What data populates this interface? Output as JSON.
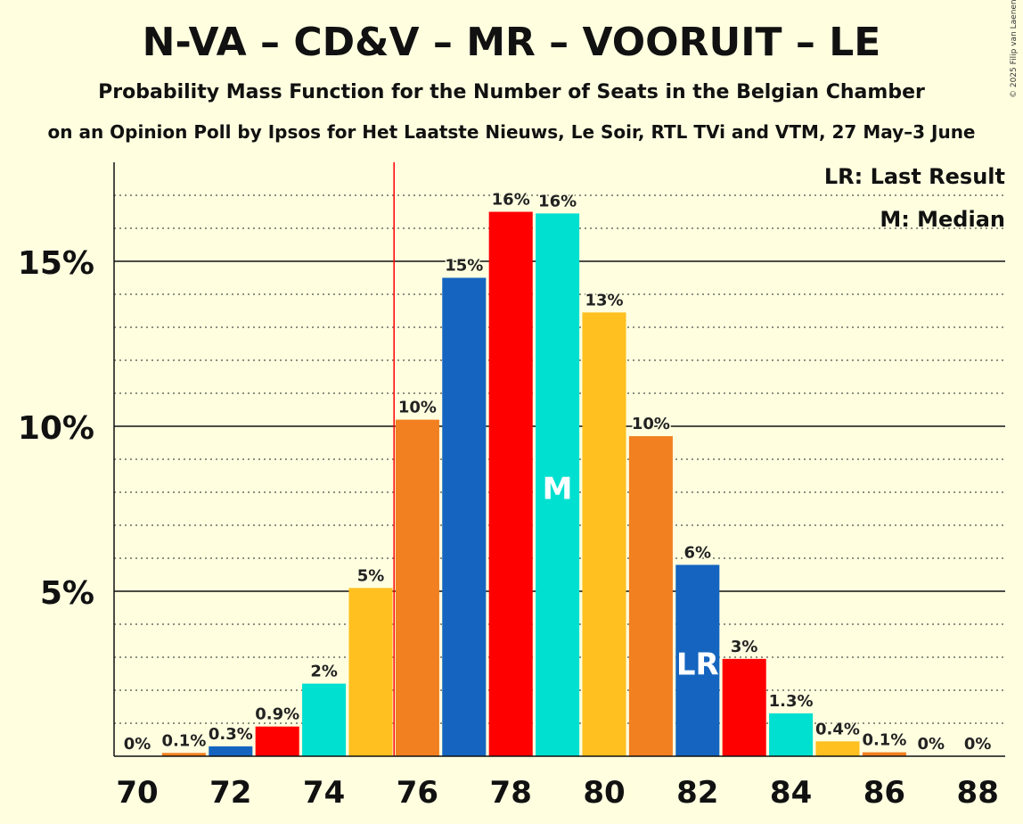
{
  "chart_data": {
    "type": "bar",
    "title": "N-VA – CD&V – MR – VOORUIT – LE",
    "subtitle": "Probability Mass Function for the Number of Seats in the Belgian Chamber",
    "source_line": "on an Opinion Poll by Ipsos for Het Laatste Nieuws, Le Soir, RTL TVi and VTM, 27 May–3 June",
    "copyright": "© 2025 Filip van Laenen",
    "xlabel": "",
    "ylabel": "",
    "x": [
      70,
      71,
      72,
      73,
      74,
      75,
      76,
      77,
      78,
      79,
      80,
      81,
      82,
      83,
      84,
      85,
      86,
      87,
      88
    ],
    "values": [
      0,
      0.1,
      0.3,
      0.9,
      2.2,
      5.1,
      10.2,
      14.5,
      16.5,
      16.45,
      13.45,
      9.7,
      5.8,
      2.95,
      1.3,
      0.45,
      0.12,
      0,
      0
    ],
    "labels": [
      "0%",
      "0.1%",
      "0.3%",
      "0.9%",
      "2%",
      "5%",
      "10%",
      "15%",
      "16%",
      "16%",
      "13%",
      "10%",
      "6%",
      "3%",
      "1.3%",
      "0.4%",
      "0.1%",
      "0%",
      "0%"
    ],
    "colors": [
      "#FFB000",
      "#F28020",
      "#1565C0",
      "#FF0000",
      "#00E0D0",
      "#FFC020",
      "#F28020",
      "#1565C0",
      "#FF0000",
      "#00E0D0",
      "#FFC020",
      "#F28020",
      "#1565C0",
      "#FF0000",
      "#00E0D0",
      "#FFC020",
      "#F28020",
      "#1565C0",
      "#FF0000"
    ],
    "xticks": [
      70,
      72,
      74,
      76,
      78,
      80,
      82,
      84,
      86,
      88
    ],
    "xtick_labels": [
      "70",
      "72",
      "74",
      "76",
      "78",
      "80",
      "82",
      "84",
      "86",
      "88"
    ],
    "yticks": [
      5,
      10,
      15
    ],
    "ytick_labels": [
      "5%",
      "10%",
      "15%"
    ],
    "ylim": [
      0,
      18
    ],
    "minor_grid_step": 1,
    "last_result_seat": 82,
    "last_result_marker": "LR",
    "median_seat": 79,
    "median_marker": "M",
    "majority_line_x": 75.5,
    "legend": {
      "last_result": "LR: Last Result",
      "median": "M: Median"
    }
  }
}
